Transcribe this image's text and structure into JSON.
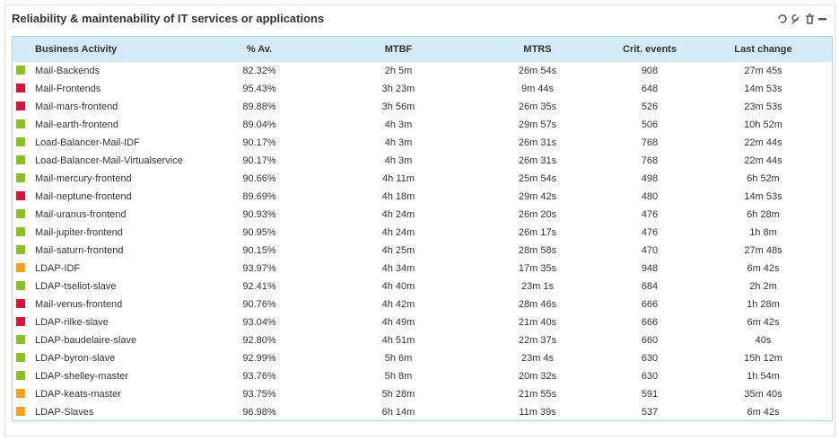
{
  "header": {
    "title": "Reliability & maintenability of IT services or applications"
  },
  "table": {
    "columns": [
      "Business Activity",
      "% Av.",
      "MTBF",
      "MTRS",
      "Crit. events",
      "Last change"
    ],
    "rows": [
      {
        "color": "#8cbf26",
        "cells": [
          "Mail-Backends",
          "82.32%",
          "2h 5m",
          "26m 54s",
          "908",
          "27m 45s"
        ]
      },
      {
        "color": "#d9153b",
        "cells": [
          "Mail-Frontends",
          "95.43%",
          "3h 23m",
          "9m 44s",
          "648",
          "14m 53s"
        ]
      },
      {
        "color": "#d9153b",
        "cells": [
          "Mail-mars-frontend",
          "89.88%",
          "3h 56m",
          "26m 35s",
          "526",
          "23m 53s"
        ]
      },
      {
        "color": "#8cbf26",
        "cells": [
          "Mail-earth-frontend",
          "89.04%",
          "4h 3m",
          "29m 57s",
          "506",
          "10h 52m"
        ]
      },
      {
        "color": "#8cbf26",
        "cells": [
          "Load-Balancer-Mail-IDF",
          "90.17%",
          "4h 3m",
          "26m 31s",
          "768",
          "22m 44s"
        ]
      },
      {
        "color": "#8cbf26",
        "cells": [
          "Load-Balancer-Mail-Virtualservice",
          "90.17%",
          "4h 3m",
          "26m 31s",
          "768",
          "22m 44s"
        ]
      },
      {
        "color": "#8cbf26",
        "cells": [
          "Mail-mercury-frontend",
          "90.66%",
          "4h 11m",
          "25m 54s",
          "498",
          "6h 52m"
        ]
      },
      {
        "color": "#d9153b",
        "cells": [
          "Mail-neptune-frontend",
          "89.69%",
          "4h 18m",
          "29m 42s",
          "480",
          "14m 53s"
        ]
      },
      {
        "color": "#8cbf26",
        "cells": [
          "Mail-uranus-frontend",
          "90.93%",
          "4h 24m",
          "26m 20s",
          "476",
          "6h 28m"
        ]
      },
      {
        "color": "#8cbf26",
        "cells": [
          "Mail-jupiter-frontend",
          "90.95%",
          "4h 24m",
          "26m 17s",
          "476",
          "1h 8m"
        ]
      },
      {
        "color": "#8cbf26",
        "cells": [
          "Mail-saturn-frontend",
          "90.15%",
          "4h 25m",
          "28m 58s",
          "470",
          "27m 48s"
        ]
      },
      {
        "color": "#f7a21b",
        "cells": [
          "LDAP-IDF",
          "93.97%",
          "4h 34m",
          "17m 35s",
          "948",
          "6m 42s"
        ]
      },
      {
        "color": "#8cbf26",
        "cells": [
          "LDAP-tseliot-slave",
          "92.41%",
          "4h 40m",
          "23m 1s",
          "684",
          "2h 2m"
        ]
      },
      {
        "color": "#d9153b",
        "cells": [
          "Mail-venus-frontend",
          "90.76%",
          "4h 42m",
          "28m 46s",
          "666",
          "1h 28m"
        ]
      },
      {
        "color": "#d9153b",
        "cells": [
          "LDAP-rilke-slave",
          "93.04%",
          "4h 49m",
          "21m 40s",
          "666",
          "6m 42s"
        ]
      },
      {
        "color": "#8cbf26",
        "cells": [
          "LDAP-baudelaire-slave",
          "92.80%",
          "4h 51m",
          "22m 37s",
          "660",
          "40s"
        ]
      },
      {
        "color": "#8cbf26",
        "cells": [
          "LDAP-byron-slave",
          "92.99%",
          "5h 6m",
          "23m 4s",
          "630",
          "15h 12m"
        ]
      },
      {
        "color": "#8cbf26",
        "cells": [
          "LDAP-shelley-master",
          "93.76%",
          "5h 8m",
          "20m 32s",
          "630",
          "1h 54m"
        ]
      },
      {
        "color": "#f7a21b",
        "cells": [
          "LDAP-keats-master",
          "93.75%",
          "5h 28m",
          "21m 55s",
          "591",
          "35m 40s"
        ]
      },
      {
        "color": "#f7a21b",
        "cells": [
          "LDAP-Slaves",
          "96.98%",
          "6h 14m",
          "11m 39s",
          "537",
          "6m 42s"
        ]
      }
    ]
  }
}
